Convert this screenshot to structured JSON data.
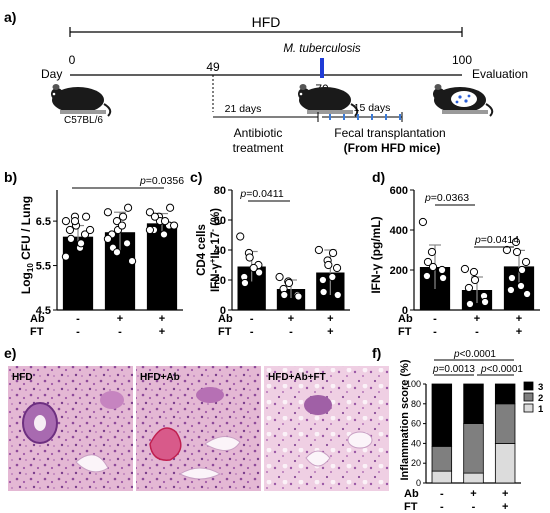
{
  "panel_a": {
    "label": "a)",
    "diet_label": "HFD",
    "day_label": "Day",
    "days": [
      "0",
      "49",
      "70",
      "100"
    ],
    "pathogen": "M. tuberculosis",
    "evaluation": "Evaluation",
    "strain": "C57BL/6",
    "antibiotic_days": "21 days",
    "antibiotic_line1": "Antibiotic",
    "antibiotic_line2": "treatment",
    "ft_days": "15 days",
    "ft_label": "Fecal transplantation",
    "ft_source": "(From HFD mice)",
    "ft_source_color": "#c00000"
  },
  "panel_b": {
    "label": "b)",
    "pvalue_prefix": "p",
    "pvalue_rest": "=0.0356",
    "ylabel_pre": "Log",
    "ylabel_sub": "10",
    "ylabel_post": " CFU / Lung",
    "row_ab": "Ab",
    "row_ft": "FT",
    "ab_marks": [
      "-",
      "+",
      "+"
    ],
    "ft_marks": [
      "-",
      "-",
      "+"
    ]
  },
  "panel_c": {
    "label": "c)",
    "pvalue_prefix": "p",
    "pvalue_rest": "=0.0411",
    "ylabel_line1": "CD4 cells",
    "ylabel_line2_pre": "IFN-γ",
    "ylabel_line2_sup1": "+",
    "ylabel_line2_mid": "IL-17",
    "ylabel_line2_sup2": "-",
    "ylabel_line2_post": " (%)",
    "row_ab": "Ab",
    "row_ft": "FT",
    "ab_marks": [
      "-",
      "+",
      "+"
    ],
    "ft_marks": [
      "-",
      "-",
      "+"
    ]
  },
  "panel_d": {
    "label": "d)",
    "pvalue1_prefix": "p",
    "pvalue1_rest": "=0.0363",
    "pvalue2_prefix": "p",
    "pvalue2_rest": "=0.0414",
    "ylabel": "IFN-γ (pg/mL)",
    "row_ab": "Ab",
    "row_ft": "FT",
    "ab_marks": [
      "-",
      "+",
      "+"
    ],
    "ft_marks": [
      "-",
      "-",
      "+"
    ]
  },
  "panel_e": {
    "label": "e)",
    "image_labels": [
      "HFD",
      "HFD+Ab",
      "HFD+Ab+FT"
    ]
  },
  "panel_f": {
    "label": "f)",
    "pvalue_top_prefix": "p",
    "pvalue_top_rest": "<0.0001",
    "pvalue_left_prefix": "p",
    "pvalue_left_rest": "=0.0013",
    "pvalue_right_prefix": "p",
    "pvalue_right_rest": "<0.0001",
    "ylabel": "Inflammation score (%)",
    "row_ab": "Ab",
    "row_ft": "FT",
    "ab_marks": [
      "-",
      "+",
      "+"
    ],
    "ft_marks": [
      "-",
      "-",
      "+"
    ]
  },
  "chart_data": [
    {
      "panel": "b",
      "type": "bar",
      "categories": [
        "1",
        "2",
        "3"
      ],
      "values": [
        6.15,
        6.25,
        6.45
      ],
      "errors": [
        0.25,
        0.45,
        0.22
      ],
      "points": [
        [
          6.5,
          6.6,
          6.4,
          6.2,
          6.6,
          6.3,
          6.1,
          5.9,
          6.0,
          6.3,
          5.7,
          6.5
        ],
        [
          6.7,
          6.5,
          6.3,
          6.0,
          6.8,
          6.2,
          5.9,
          6.4,
          6.6,
          5.6,
          6.1,
          5.8
        ],
        [
          6.7,
          6.6,
          6.5,
          6.4,
          6.8,
          6.3,
          6.6,
          6.2,
          6.5,
          6.4,
          6.3
        ]
      ],
      "yticks": [
        "4.5",
        "5.5",
        "6.5"
      ],
      "ylim": [
        4.5,
        7.2
      ]
    },
    {
      "panel": "c",
      "type": "bar",
      "categories": [
        "1",
        "2",
        "3"
      ],
      "values": [
        29,
        14,
        25
      ],
      "errors": [
        10,
        6,
        15
      ],
      "points": [
        [
          49,
          38,
          35,
          30,
          25,
          22,
          18,
          28
        ],
        [
          22,
          19,
          18,
          10,
          9,
          14,
          10
        ],
        [
          40,
          33,
          30,
          28,
          10,
          20,
          12,
          22,
          38
        ]
      ],
      "yticks": [
        "0",
        "20",
        "40",
        "60",
        "80"
      ],
      "ylim": [
        0,
        80
      ]
    },
    {
      "panel": "d",
      "type": "bar",
      "categories": [
        "1",
        "2",
        "3"
      ],
      "values": [
        215,
        100,
        218
      ],
      "errors": [
        110,
        65,
        80
      ],
      "points": [
        [
          440,
          290,
          215,
          200,
          160,
          170,
          240
        ],
        [
          205,
          190,
          150,
          70,
          40,
          110,
          30
        ],
        [
          300,
          340,
          290,
          240,
          80,
          100,
          160,
          120,
          200
        ]
      ],
      "yticks": [
        "0",
        "200",
        "400",
        "600"
      ],
      "ylim": [
        0,
        600
      ]
    },
    {
      "panel": "f",
      "type": "bar",
      "stacked": true,
      "categories": [
        "1",
        "2",
        "3"
      ],
      "series": [
        {
          "name": "1",
          "values": [
            12,
            10,
            40
          ],
          "color": "#dcdcdc"
        },
        {
          "name": "2",
          "values": [
            25,
            50,
            40
          ],
          "color": "#7f7f7f"
        },
        {
          "name": "3",
          "values": [
            63,
            40,
            20
          ],
          "color": "#000000"
        }
      ],
      "yticks": [
        "0",
        "20",
        "40",
        "60",
        "80",
        "100"
      ],
      "ylim": [
        0,
        100
      ]
    }
  ]
}
